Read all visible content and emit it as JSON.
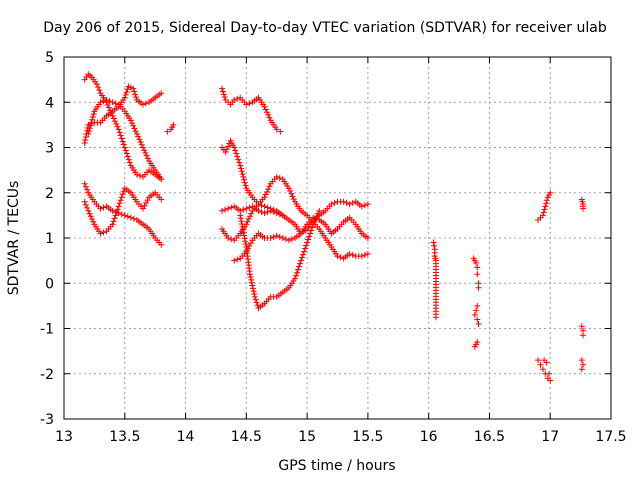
{
  "chart_data": {
    "type": "scatter",
    "title": "Day 206 of 2015, Sidereal Day-to-day VTEC variation (SDTVAR) for receiver ulab",
    "xlabel": "GPS time / hours",
    "ylabel": "SDTVAR / TECUs",
    "xlim": [
      13,
      17.5
    ],
    "ylim": [
      -3,
      5
    ],
    "xticks": [
      13,
      13.5,
      14,
      14.5,
      15,
      15.5,
      16,
      16.5,
      17,
      17.5
    ],
    "xtick_labels": [
      "13",
      "13.5",
      "14",
      "14.5",
      "15",
      "15.5",
      "16",
      "16.5",
      "17",
      "17.5"
    ],
    "yticks": [
      -3,
      -2,
      -1,
      0,
      1,
      2,
      3,
      4,
      5
    ],
    "ytick_labels": [
      "-3",
      "-2",
      "-1",
      "0",
      "1",
      "2",
      "3",
      "4",
      "5"
    ],
    "grid": true,
    "marker": "+",
    "color": "#ff0000",
    "series": [
      {
        "name": "s1",
        "x": [
          13.17,
          13.2,
          13.23,
          13.27,
          13.3,
          13.35,
          13.4,
          13.45,
          13.5,
          13.55,
          13.6,
          13.65,
          13.7,
          13.75,
          13.8
        ],
        "y": [
          4.5,
          4.62,
          4.55,
          4.4,
          4.2,
          4.0,
          3.7,
          3.4,
          3.0,
          2.6,
          2.4,
          2.35,
          2.5,
          2.4,
          2.3
        ]
      },
      {
        "name": "s2",
        "x": [
          13.17,
          13.2,
          13.25,
          13.3,
          13.35,
          13.4,
          13.45,
          13.5,
          13.53,
          13.57,
          13.6,
          13.65,
          13.7,
          13.75,
          13.8
        ],
        "y": [
          3.1,
          3.5,
          3.55,
          3.55,
          3.7,
          3.8,
          3.9,
          4.1,
          4.35,
          4.3,
          4.05,
          3.95,
          4.0,
          4.1,
          4.2
        ]
      },
      {
        "name": "s3",
        "x": [
          13.2,
          13.25,
          13.3,
          13.35,
          13.4,
          13.45,
          13.5,
          13.55,
          13.6,
          13.65,
          13.7,
          13.75,
          13.8
        ],
        "y": [
          3.3,
          3.8,
          4.0,
          4.05,
          4.0,
          3.95,
          3.8,
          3.6,
          3.3,
          3.0,
          2.7,
          2.5,
          2.3
        ]
      },
      {
        "name": "s4",
        "x": [
          13.17,
          13.2,
          13.25,
          13.3,
          13.35,
          13.4,
          13.45,
          13.5,
          13.55,
          13.6,
          13.65,
          13.7,
          13.75,
          13.8
        ],
        "y": [
          2.2,
          2.0,
          1.8,
          1.65,
          1.7,
          1.6,
          1.55,
          1.5,
          1.45,
          1.4,
          1.3,
          1.2,
          1.0,
          0.85
        ]
      },
      {
        "name": "s5",
        "x": [
          13.17,
          13.2,
          13.25,
          13.3,
          13.35,
          13.4,
          13.45,
          13.5,
          13.55,
          13.6,
          13.65,
          13.7,
          13.75,
          13.8
        ],
        "y": [
          1.8,
          1.6,
          1.3,
          1.1,
          1.15,
          1.3,
          1.7,
          2.1,
          2.0,
          1.8,
          1.65,
          1.9,
          2.0,
          1.85
        ]
      },
      {
        "name": "s6",
        "x": [
          13.85,
          13.88,
          13.9
        ],
        "y": [
          3.35,
          3.4,
          3.5
        ]
      },
      {
        "name": "s7",
        "x": [
          14.3,
          14.33,
          14.37,
          14.4,
          14.45,
          14.5,
          14.55,
          14.6,
          14.65,
          14.7,
          14.75,
          14.78
        ],
        "y": [
          4.3,
          4.05,
          3.95,
          4.05,
          4.1,
          3.95,
          4.0,
          4.1,
          3.9,
          3.6,
          3.4,
          3.35
        ]
      },
      {
        "name": "s8",
        "x": [
          14.3,
          14.33,
          14.37,
          14.4,
          14.45,
          14.5,
          14.55,
          14.6,
          14.65,
          14.7,
          14.75,
          14.8
        ],
        "y": [
          3.0,
          2.9,
          3.15,
          3.0,
          2.6,
          2.1,
          1.9,
          1.75,
          1.7,
          1.65,
          1.6,
          1.5
        ]
      },
      {
        "name": "s9",
        "x": [
          14.3,
          14.35,
          14.4,
          14.45,
          14.5,
          14.55,
          14.6,
          14.65,
          14.7,
          14.75,
          14.8,
          14.85,
          14.9,
          14.95,
          15.0,
          15.05,
          15.1,
          15.15,
          15.2,
          15.25,
          15.3,
          15.35,
          15.4,
          15.45,
          15.5
        ],
        "y": [
          1.2,
          1.0,
          0.95,
          1.1,
          1.3,
          1.6,
          1.75,
          1.9,
          2.2,
          2.35,
          2.3,
          2.1,
          1.8,
          1.6,
          1.5,
          1.35,
          1.2,
          1.0,
          0.8,
          0.6,
          0.55,
          0.65,
          0.6,
          0.6,
          0.65
        ]
      },
      {
        "name": "s10",
        "x": [
          14.3,
          14.35,
          14.4,
          14.45,
          14.5,
          14.55,
          14.6,
          14.65,
          14.7,
          14.75,
          14.8,
          14.85,
          14.9,
          14.95,
          15.0,
          15.05,
          15.1,
          15.15,
          15.2,
          15.25,
          15.3,
          15.35,
          15.4,
          15.45,
          15.5
        ],
        "y": [
          1.6,
          1.65,
          1.7,
          1.6,
          1.65,
          1.7,
          1.6,
          1.55,
          1.6,
          1.55,
          1.5,
          1.4,
          1.3,
          1.1,
          1.2,
          1.4,
          1.5,
          1.6,
          1.75,
          1.8,
          1.8,
          1.75,
          1.8,
          1.7,
          1.75
        ]
      },
      {
        "name": "s11",
        "x": [
          14.4,
          14.45,
          14.5,
          14.55,
          14.6,
          14.65,
          14.7,
          14.75,
          14.8,
          14.85,
          14.9,
          14.95,
          15.0,
          15.05,
          15.1,
          15.15,
          15.2,
          15.25,
          15.3,
          15.35,
          15.4,
          15.45,
          15.5
        ],
        "y": [
          0.5,
          0.55,
          0.7,
          0.95,
          1.1,
          1.0,
          1.0,
          1.05,
          1.0,
          0.95,
          1.0,
          1.1,
          1.3,
          1.45,
          1.4,
          1.3,
          1.1,
          1.2,
          1.35,
          1.45,
          1.3,
          1.1,
          1.0
        ]
      },
      {
        "name": "s12",
        "x": [
          14.45,
          14.5,
          14.53,
          14.57,
          14.6,
          14.65,
          14.7,
          14.75,
          14.8,
          14.85,
          14.9,
          14.95,
          15.0,
          15.05,
          15.1
        ],
        "y": [
          1.5,
          0.8,
          0.2,
          -0.3,
          -0.55,
          -0.45,
          -0.3,
          -0.3,
          -0.2,
          -0.1,
          0.1,
          0.5,
          0.9,
          1.3,
          1.6
        ]
      },
      {
        "name": "s13",
        "x": [
          16.04,
          16.05,
          16.05,
          16.06,
          16.06
        ],
        "y": [
          0.9,
          0.75,
          0.6,
          0.5,
          -0.75
        ]
      },
      {
        "name": "s14",
        "x": [
          16.37,
          16.38,
          16.39,
          16.4,
          16.4,
          16.41,
          16.41,
          16.4,
          16.39,
          16.38,
          16.4,
          16.41,
          16.4,
          16.39,
          16.38
        ],
        "y": [
          0.55,
          0.5,
          0.45,
          0.35,
          0.2,
          0.0,
          -0.1,
          -0.5,
          -0.6,
          -0.7,
          -0.8,
          -0.9,
          -1.3,
          -1.35,
          -1.4
        ]
      },
      {
        "name": "s15",
        "x": [
          16.9,
          16.92,
          16.94,
          16.96,
          16.98,
          17.0
        ],
        "y": [
          1.4,
          1.45,
          1.5,
          1.7,
          1.9,
          2.0
        ]
      },
      {
        "name": "s16",
        "x": [
          16.9,
          16.92,
          16.94,
          16.96,
          16.98,
          16.95,
          16.97,
          16.99,
          17.0
        ],
        "y": [
          -1.7,
          -1.8,
          -1.9,
          -2.0,
          -2.1,
          -1.7,
          -1.75,
          -2.0,
          -2.15
        ]
      },
      {
        "name": "s17",
        "x": [
          17.26,
          17.27,
          17.27
        ],
        "y": [
          1.85,
          1.75,
          1.65
        ]
      },
      {
        "name": "s18",
        "x": [
          17.26,
          17.27,
          17.27,
          17.26,
          17.27,
          17.26
        ],
        "y": [
          -0.95,
          -1.05,
          -1.15,
          -1.7,
          -1.8,
          -1.9
        ]
      }
    ]
  }
}
